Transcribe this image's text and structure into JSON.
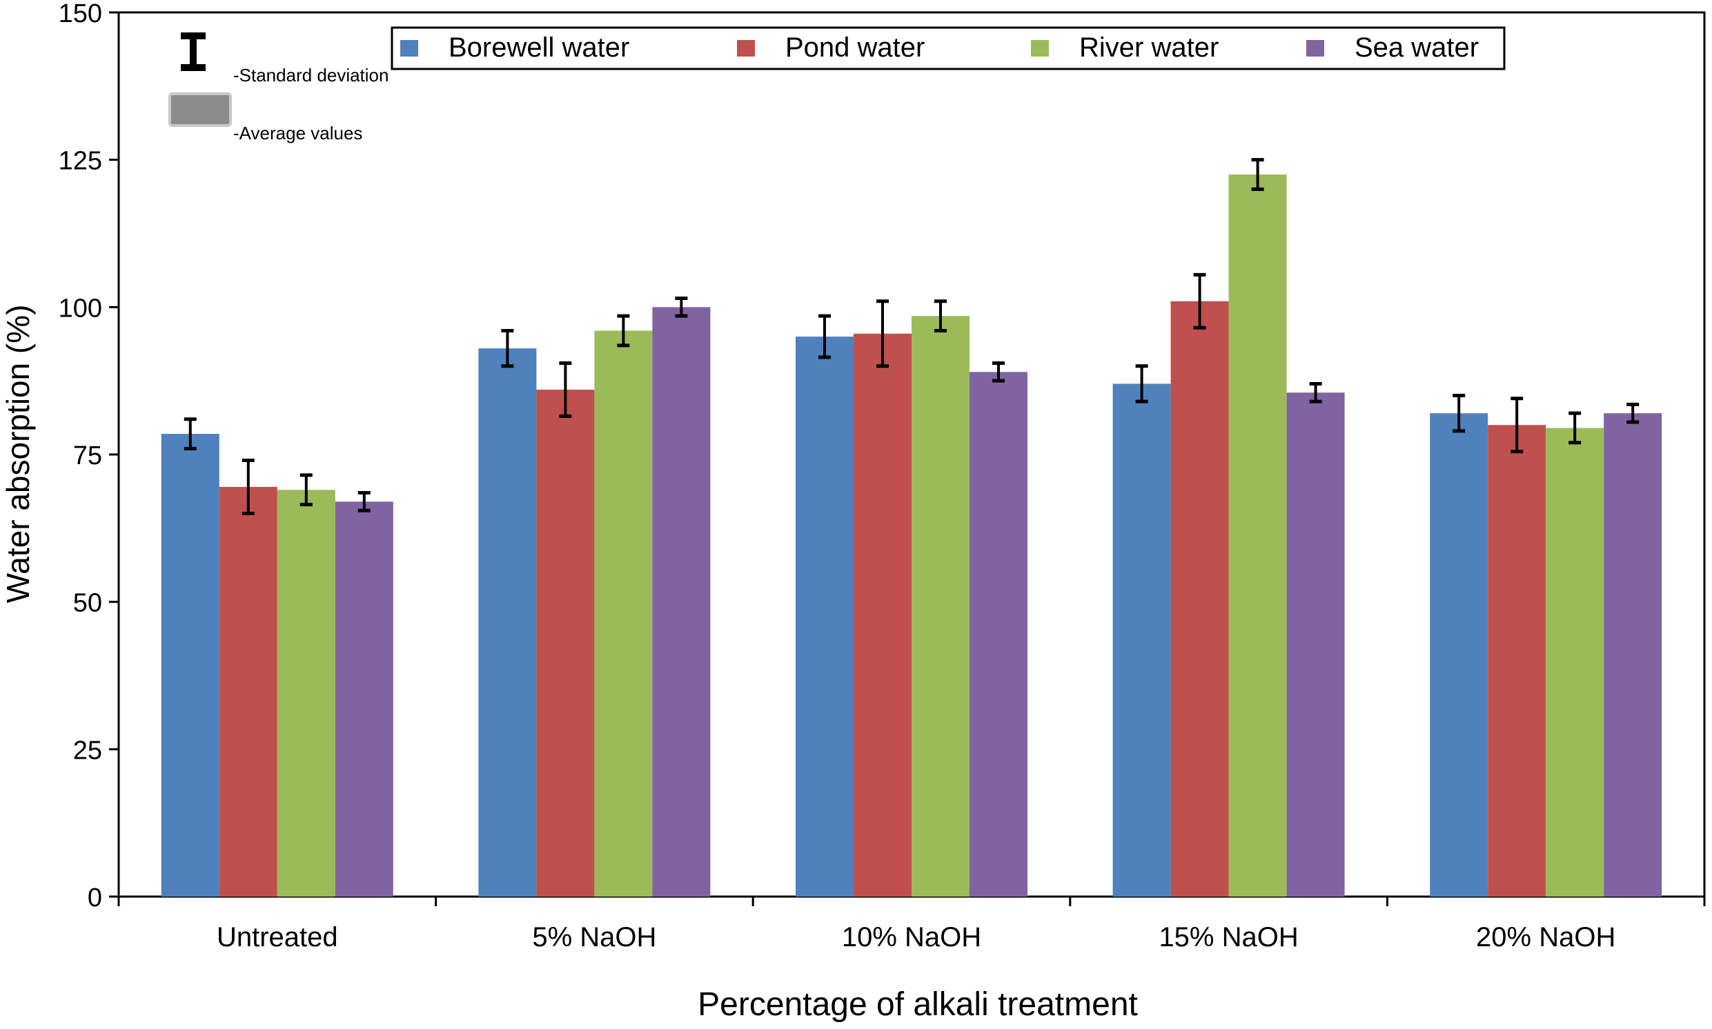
{
  "chart_data": {
    "type": "bar",
    "title": "",
    "xlabel": "Percentage of alkali treatment",
    "ylabel": "Water absorption (%)",
    "ylim": [
      0,
      150
    ],
    "yticks": [
      0,
      25,
      50,
      75,
      100,
      125,
      150
    ],
    "grid": false,
    "legend_position": "top",
    "categories": [
      "Untreated",
      "5% NaOH",
      "10% NaOH",
      "15% NaOH",
      "20% NaOH"
    ],
    "series": [
      {
        "name": "Borewell water",
        "color": "#4f81bd",
        "values": [
          78.5,
          93,
          95,
          87,
          82
        ],
        "error": [
          2.5,
          3,
          3.5,
          3,
          3
        ]
      },
      {
        "name": "Pond water",
        "color": "#c0504d",
        "values": [
          69.5,
          86,
          95.5,
          101,
          80
        ],
        "error": [
          4.5,
          4.5,
          5.5,
          4.5,
          4.5
        ]
      },
      {
        "name": "River water",
        "color": "#9bbb59",
        "values": [
          69,
          96,
          98.5,
          122.5,
          79.5
        ],
        "error": [
          2.5,
          2.5,
          2.5,
          2.5,
          2.5
        ]
      },
      {
        "name": "Sea water",
        "color": "#8064a2",
        "values": [
          67,
          100,
          89,
          85.5,
          82
        ],
        "error": [
          1.5,
          1.5,
          1.5,
          1.5,
          1.5
        ]
      }
    ],
    "key": {
      "std_label": "-Standard deviation",
      "avg_label": "-Average values"
    }
  }
}
